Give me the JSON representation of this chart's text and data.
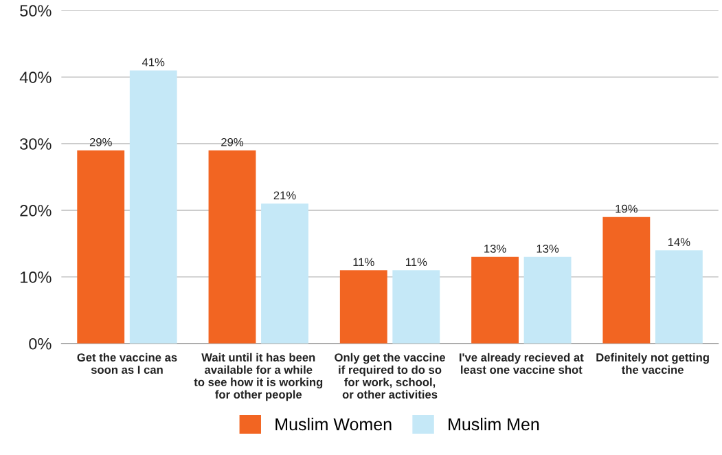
{
  "chart_data": {
    "type": "bar",
    "categories": [
      "Get the vaccine as\nsoon as I can",
      "Wait until it has been\navailable for a while\nto see how it is working\nfor other people",
      "Only get the vaccine\nif required to do so\nfor work, school,\nor other activities",
      "I've already recieved at\nleast one vaccine shot",
      "Definitely not getting\nthe vaccine"
    ],
    "series": [
      {
        "name": "Muslim Women",
        "color": "#f26522",
        "values": [
          29,
          29,
          11,
          13,
          19
        ],
        "value_labels": [
          "29%",
          "29%",
          "11%",
          "13%",
          "19%"
        ]
      },
      {
        "name": "Muslim Men",
        "color": "#c5e8f7",
        "values": [
          41,
          21,
          11,
          13,
          14
        ],
        "value_labels": [
          "41%",
          "21%",
          "11%",
          "13%",
          "14%"
        ]
      }
    ],
    "ylim": [
      0,
      50
    ],
    "yticks": [
      {
        "value": 0,
        "label": "0%"
      },
      {
        "value": 10,
        "label": "10%"
      },
      {
        "value": 20,
        "label": "20%"
      },
      {
        "value": 30,
        "label": "30%"
      },
      {
        "value": 40,
        "label": "40%"
      },
      {
        "value": 50,
        "label": "50%"
      }
    ],
    "grid": "y",
    "legend": "bottom"
  }
}
